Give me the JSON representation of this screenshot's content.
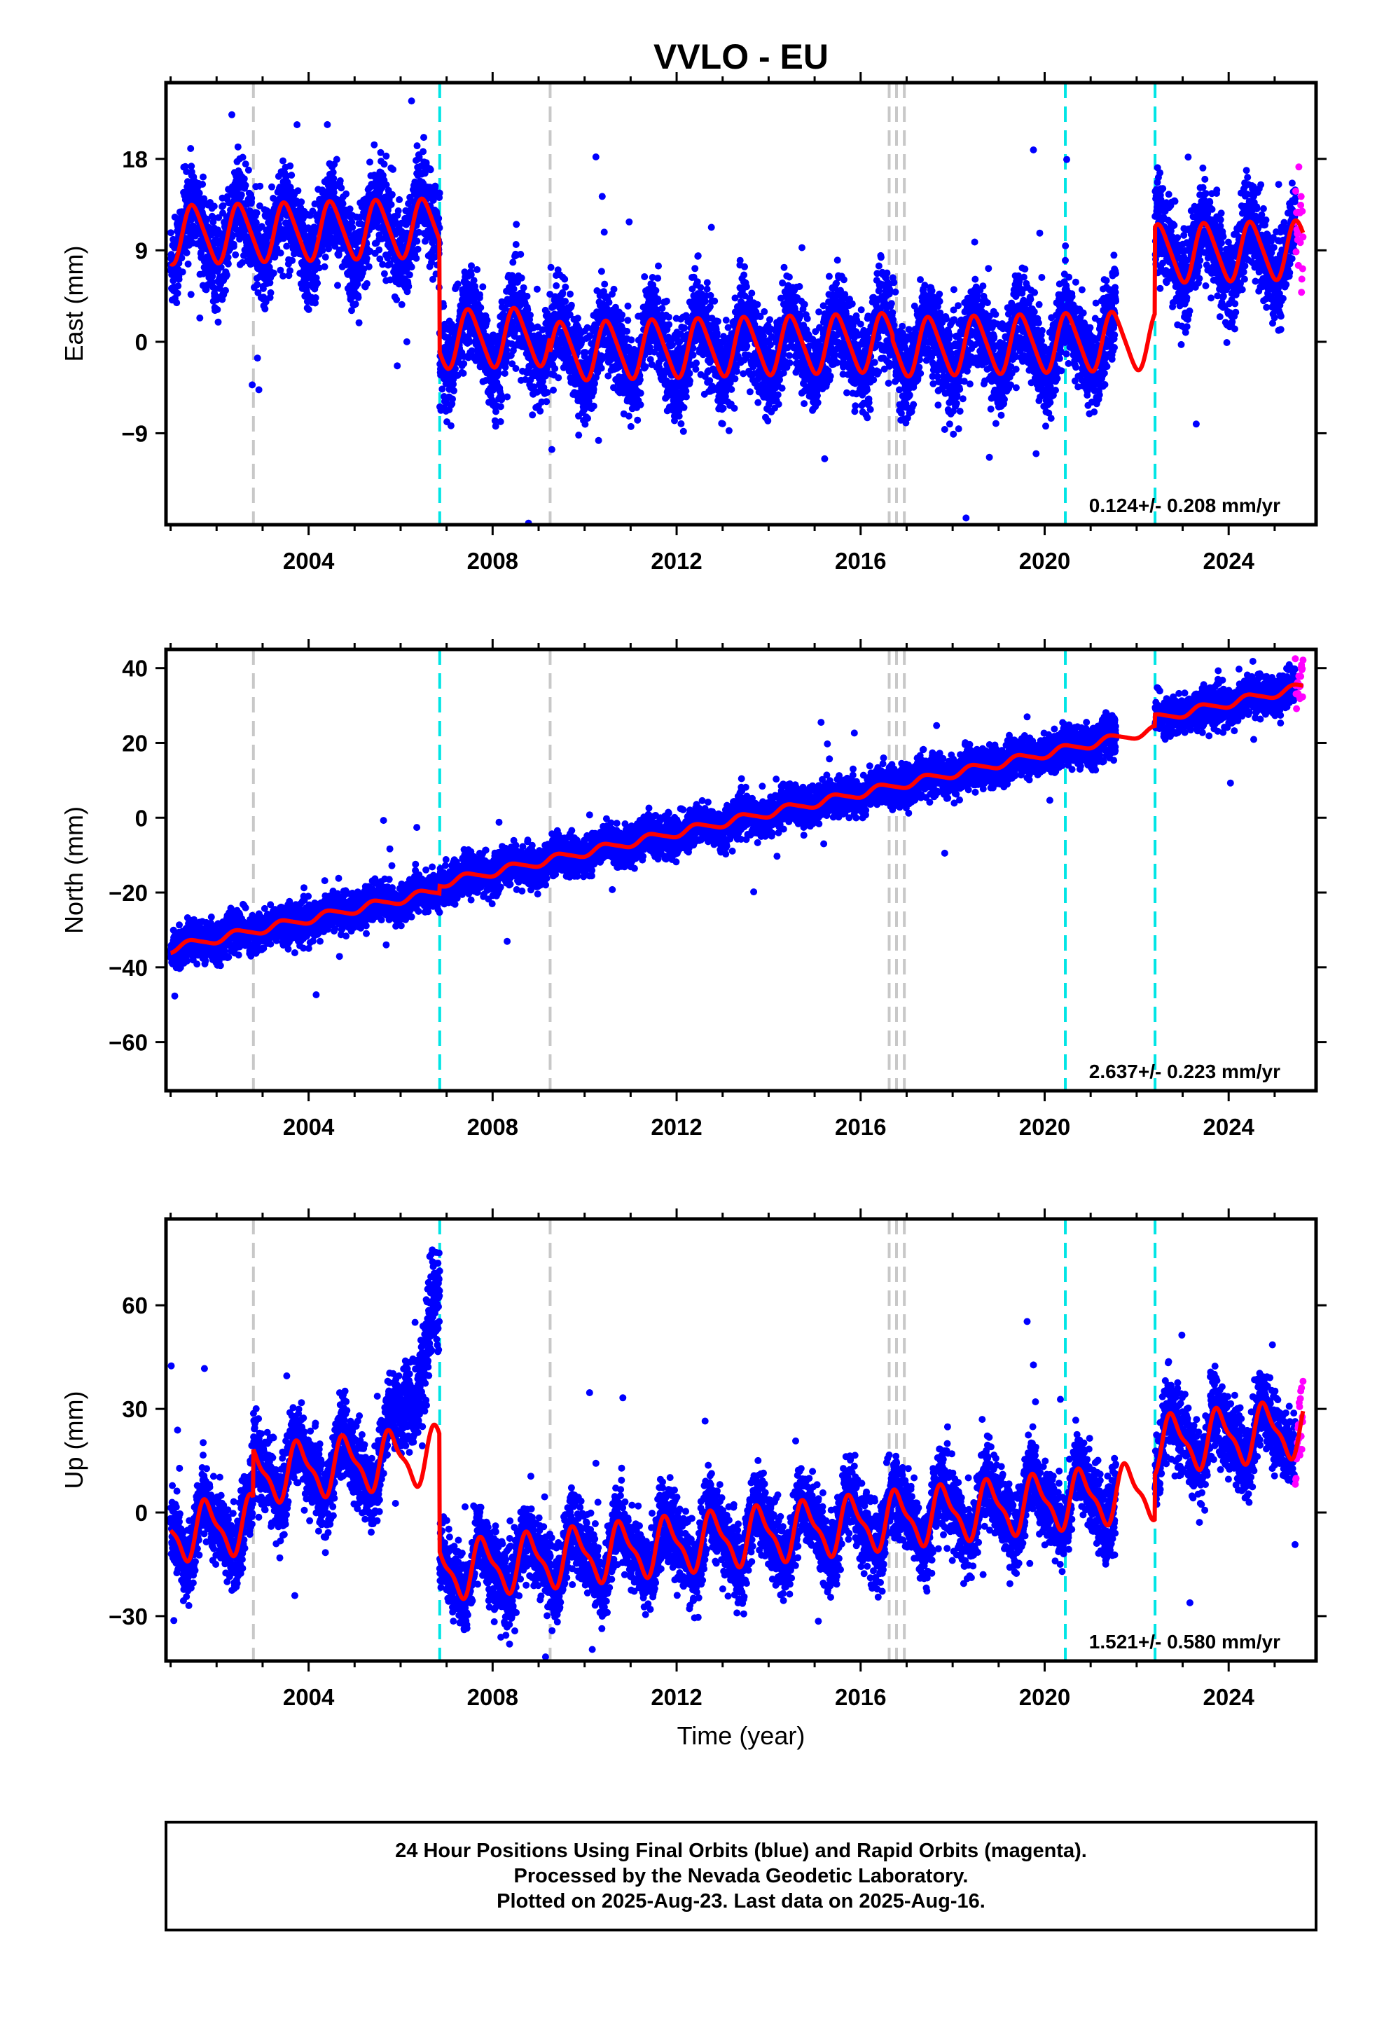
{
  "title": "VVLO - EU",
  "colors": {
    "final": "#0000ff",
    "rapid": "#ff00ff",
    "model": "#ff0000",
    "equipment_change": "#00e5e5",
    "earthquake": "#c8c8c8",
    "frame": "#000000"
  },
  "chart_data": [
    {
      "type": "scatter",
      "panel": "east",
      "ylabel": "East (mm)",
      "xlabel": "",
      "xlim": [
        2000.9,
        2025.9
      ],
      "ylim": [
        -18,
        25.5
      ],
      "yticks": [
        -9,
        0,
        9,
        18
      ],
      "xticks": [
        2004,
        2008,
        2012,
        2016,
        2020,
        2024
      ],
      "rate_label": "0.124+/- 0.208 mm/yr",
      "offsets": [
        {
          "t": 2006.85,
          "d": -11
        },
        {
          "t": 2009.25,
          "d": -1.5
        },
        {
          "t": 2016.7,
          "d": -0.5
        },
        {
          "t": 2022.4,
          "d": 8.5
        }
      ],
      "base": 10.5,
      "rate": 0.124,
      "annual_amp": 2.8,
      "annual_phase": 0.25,
      "semi_amp": 0.4,
      "noise": 2.2,
      "series": [
        {
          "kind": "final_orbits_points",
          "color": "#0000ff",
          "range": [
            2001.0,
            2025.45
          ]
        },
        {
          "kind": "rapid_orbits_points",
          "color": "#ff00ff",
          "range": [
            2025.45,
            2025.62
          ]
        },
        {
          "kind": "model_fit",
          "color": "#ff0000"
        }
      ]
    },
    {
      "type": "scatter",
      "panel": "north",
      "ylabel": "North (mm)",
      "xlabel": "",
      "xlim": [
        2000.9,
        2025.9
      ],
      "ylim": [
        -73,
        45
      ],
      "yticks": [
        -60,
        -40,
        -20,
        0,
        20,
        40
      ],
      "xticks": [
        2004,
        2008,
        2012,
        2016,
        2020,
        2024
      ],
      "rate_label": "2.637+/- 0.223 mm/yr",
      "offsets": [
        {
          "t": 2006.85,
          "d": 2
        },
        {
          "t": 2022.4,
          "d": 3
        }
      ],
      "base": -35,
      "rate": 2.637,
      "annual_amp": 1.1,
      "annual_phase": 0.2,
      "semi_amp": 0.2,
      "noise": 2.5,
      "series": [
        {
          "kind": "final_orbits_points",
          "color": "#0000ff",
          "range": [
            2001.0,
            2025.45
          ]
        },
        {
          "kind": "rapid_orbits_points",
          "color": "#ff00ff",
          "range": [
            2025.45,
            2025.62
          ]
        },
        {
          "kind": "model_fit",
          "color": "#ff0000"
        }
      ]
    },
    {
      "type": "scatter",
      "panel": "up",
      "ylabel": "Up (mm)",
      "xlabel": "Time (year)",
      "xlim": [
        2000.9,
        2025.9
      ],
      "ylim": [
        -43,
        85
      ],
      "yticks": [
        -30,
        0,
        30,
        60
      ],
      "xticks": [
        2004,
        2008,
        2012,
        2016,
        2020,
        2024
      ],
      "rate_label": "1.521+/- 0.580 mm/yr",
      "offsets": [
        {
          "t": 2002.8,
          "d": 14
        },
        {
          "t": 2006.85,
          "d": -34
        },
        {
          "t": 2022.4,
          "d": 13
        }
      ],
      "base": -6,
      "rate": 1.521,
      "annual_amp": 7.5,
      "annual_phase": 0.55,
      "semi_amp": 2.5,
      "noise": 5.5,
      "series": [
        {
          "kind": "final_orbits_points",
          "color": "#0000ff",
          "range": [
            2001.0,
            2025.45
          ]
        },
        {
          "kind": "rapid_orbits_points",
          "color": "#ff00ff",
          "range": [
            2025.45,
            2025.62
          ]
        },
        {
          "kind": "model_fit",
          "color": "#ff0000"
        }
      ]
    }
  ],
  "vertical_markers": {
    "equipment_change": [
      2006.85,
      2020.45,
      2022.4
    ],
    "earthquake": [
      2002.8,
      2009.25,
      2016.62,
      2016.78,
      2016.95
    ]
  },
  "footer": {
    "line1": "24 Hour Positions Using Final Orbits (blue) and Rapid Orbits (magenta).",
    "line2": "Processed by the Nevada Geodetic Laboratory.",
    "line3": "Plotted on 2025-Aug-23. Last data on 2025-Aug-16."
  }
}
